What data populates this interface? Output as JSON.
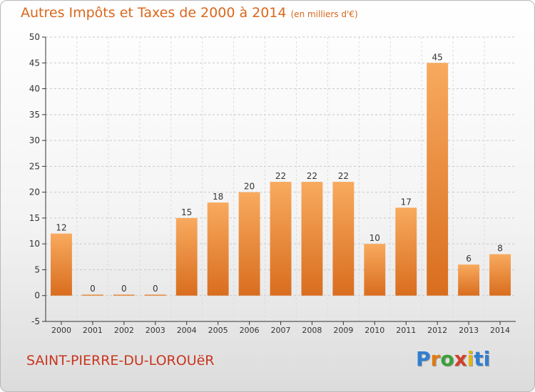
{
  "title": "Autres Impôts et Taxes de 2000 à 2014",
  "unit_label": "(en milliers d'€)",
  "commune": "SAINT-PIERRE-DU-LOROUëR",
  "logo_text": "Proxiti",
  "colors": {
    "title": "#d9671c",
    "commune": "#c8361f",
    "bar_top": "#f8aa5e",
    "bar_bottom": "#d96d1e",
    "grid": "#c8c8c8"
  },
  "chart_data": {
    "type": "bar",
    "categories": [
      "2000",
      "2001",
      "2002",
      "2003",
      "2004",
      "2005",
      "2006",
      "2007",
      "2008",
      "2009",
      "2010",
      "2011",
      "2012",
      "2013",
      "2014"
    ],
    "values": [
      12,
      0,
      0,
      0,
      15,
      18,
      20,
      22,
      22,
      22,
      10,
      17,
      45,
      6,
      8
    ],
    "ylim": [
      -5,
      50
    ],
    "yticks": [
      -5,
      0,
      5,
      10,
      15,
      20,
      25,
      30,
      35,
      40,
      45,
      50
    ],
    "grid": "horizontal dashed",
    "data_labels": true
  }
}
